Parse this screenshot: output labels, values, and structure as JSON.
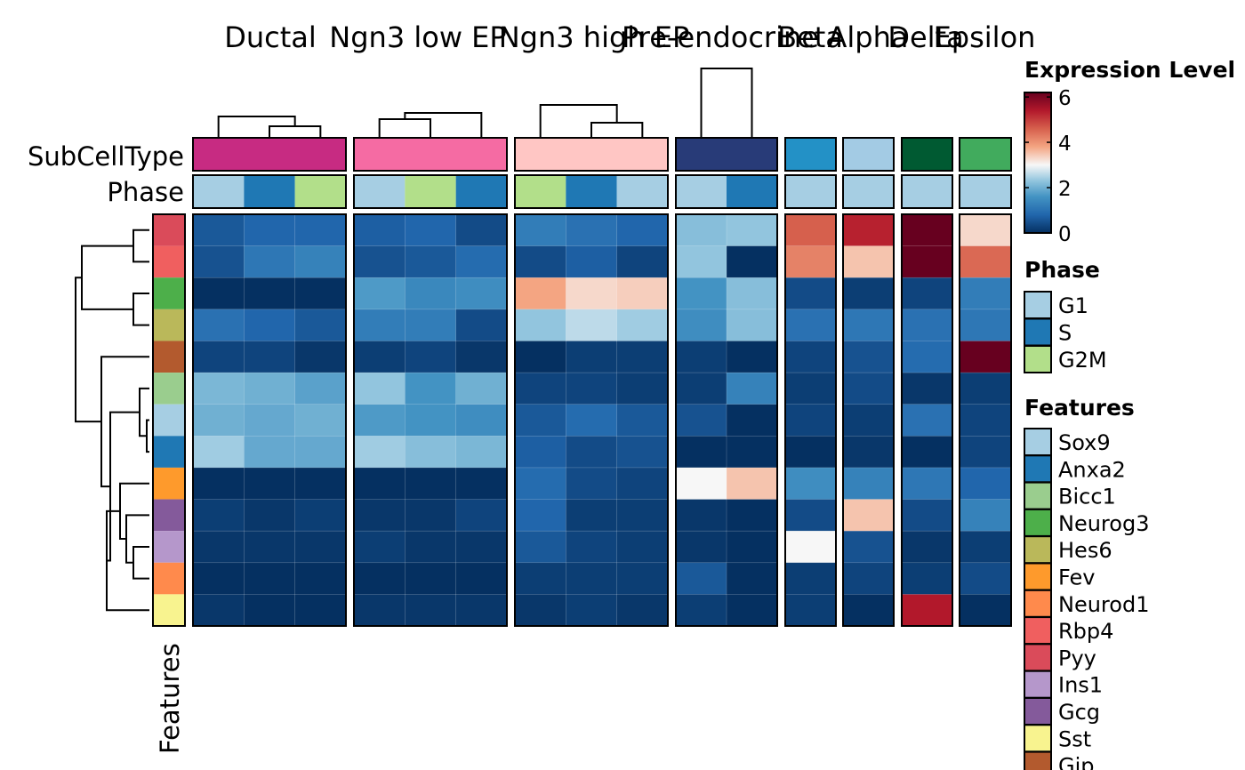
{
  "chart_data": {
    "type": "heatmap",
    "title": "",
    "column_groups": [
      "Ductal",
      "Ngn3 low EP",
      "Ngn3 high EP",
      "Pre-endocrine",
      "Beta",
      "Alpha",
      "Delta",
      "Epsilon"
    ],
    "group_column_counts": [
      3,
      3,
      3,
      2,
      1,
      1,
      1,
      1
    ],
    "annotation_labels": {
      "subcelltype": "SubCellType",
      "phase": "Phase",
      "features": "Features"
    },
    "subcelltype_colors": [
      "#C72B82",
      "#F56BA3",
      "#FFC6C4",
      "#283B78",
      "#2391C6",
      "#A3CBE4",
      "#005A32",
      "#41AB5D"
    ],
    "column_phase": [
      [
        "G1",
        "S",
        "G2M"
      ],
      [
        "G1",
        "G2M",
        "S"
      ],
      [
        "G2M",
        "S",
        "G1"
      ],
      [
        "G1",
        "S"
      ],
      [
        "G1"
      ],
      [
        "G1"
      ],
      [
        "G1"
      ],
      [
        "G1"
      ]
    ],
    "row_features": [
      "Pyy",
      "Rbp4",
      "Neurog3",
      "Hes6",
      "Gip",
      "Bicc1",
      "Sox9",
      "Anxa2",
      "Fev",
      "Gcg",
      "Ins1",
      "Neurod1",
      "Sst"
    ],
    "values": [
      [
        0.6,
        0.8,
        0.8,
        0.7,
        0.8,
        0.4,
        1.2,
        1.0,
        0.8,
        2.2,
        2.3,
        4.6,
        5.3,
        6.2,
        3.3
      ],
      [
        0.5,
        1.1,
        1.3,
        0.5,
        0.6,
        0.9,
        0.4,
        0.7,
        0.3,
        2.3,
        0.0,
        4.2,
        3.5,
        6.2,
        4.5
      ],
      [
        0.0,
        0.0,
        0.0,
        1.7,
        1.4,
        1.5,
        3.8,
        3.3,
        3.4,
        1.6,
        2.2,
        0.4,
        0.2,
        0.3,
        1.2
      ],
      [
        1.0,
        0.8,
        0.6,
        1.2,
        1.2,
        0.4,
        2.3,
        2.6,
        2.4,
        1.5,
        2.2,
        1.0,
        1.1,
        1.0,
        1.1
      ],
      [
        0.3,
        0.3,
        0.1,
        0.2,
        0.3,
        0.1,
        0.0,
        0.2,
        0.2,
        0.2,
        0.0,
        0.3,
        0.5,
        0.9,
        6.2
      ],
      [
        2.1,
        2.0,
        1.8,
        2.3,
        1.6,
        2.0,
        0.3,
        0.3,
        0.2,
        0.2,
        1.3,
        0.2,
        0.4,
        0.1,
        0.2
      ],
      [
        2.0,
        1.9,
        2.0,
        1.7,
        1.6,
        1.5,
        0.6,
        0.9,
        0.6,
        0.5,
        0.0,
        0.3,
        0.2,
        1.0,
        0.3
      ],
      [
        2.4,
        1.9,
        1.9,
        2.4,
        2.2,
        2.1,
        0.7,
        0.4,
        0.5,
        0.0,
        0.0,
        0.0,
        0.1,
        0.0,
        0.3
      ],
      [
        0.0,
        0.0,
        0.0,
        0.0,
        0.0,
        0.0,
        0.9,
        0.4,
        0.3,
        3.0,
        3.5,
        1.5,
        1.3,
        1.1,
        0.8
      ],
      [
        0.2,
        0.1,
        0.2,
        0.1,
        0.1,
        0.3,
        0.8,
        0.2,
        0.2,
        0.1,
        0.0,
        0.4,
        3.5,
        0.4,
        1.3
      ],
      [
        0.1,
        0.1,
        0.1,
        0.2,
        0.1,
        0.1,
        0.6,
        0.3,
        0.2,
        0.1,
        0.0,
        3.0,
        0.5,
        0.1,
        0.2
      ],
      [
        0.0,
        0.0,
        0.0,
        0.0,
        0.0,
        0.0,
        0.2,
        0.2,
        0.2,
        0.6,
        0.0,
        0.2,
        0.3,
        0.2,
        0.4
      ],
      [
        0.1,
        0.0,
        0.0,
        0.1,
        0.1,
        0.1,
        0.1,
        0.2,
        0.1,
        0.2,
        0.0,
        0.2,
        0.0,
        5.4,
        0.0
      ]
    ],
    "legends": {
      "expression": {
        "title": "Expression Level",
        "ticks": [
          0,
          2,
          4,
          6
        ],
        "range": [
          0,
          6.2
        ]
      },
      "phase": {
        "title": "Phase",
        "items": [
          "G1",
          "S",
          "G2M"
        ],
        "colors": [
          "#A6CEE3",
          "#1F78B4",
          "#B2DF8A"
        ]
      },
      "features": {
        "title": "Features",
        "items": [
          "Sox9",
          "Anxa2",
          "Bicc1",
          "Neurog3",
          "Hes6",
          "Fev",
          "Neurod1",
          "Rbp4",
          "Pyy",
          "Ins1",
          "Gcg",
          "Sst",
          "Gip"
        ],
        "colors": [
          "#A6CEE3",
          "#1F78B4",
          "#9ACD8E",
          "#4DAF4A",
          "#BAB85A",
          "#FE9A2C",
          "#FF8A4C",
          "#F05F5F",
          "#DA4B5A",
          "#B597CB",
          "#845A9B",
          "#F8F38F",
          "#B35A2E"
        ]
      }
    }
  }
}
